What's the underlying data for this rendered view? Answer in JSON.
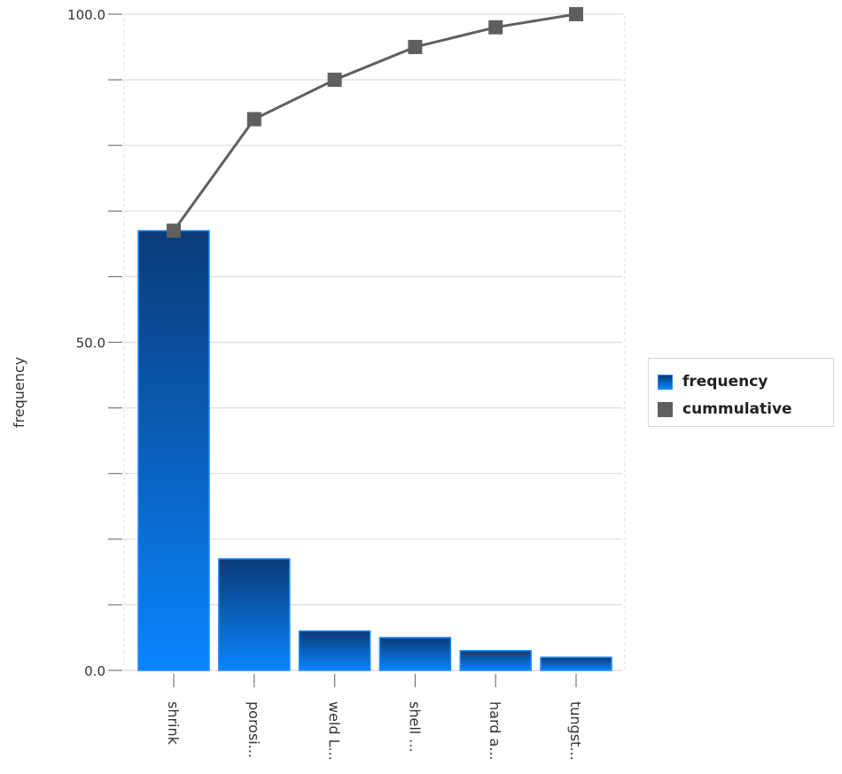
{
  "chart_data": {
    "type": "bar",
    "categories": [
      "shrink",
      "porosi...",
      "weld L...",
      "shell ...",
      "hard a...",
      "tungst..."
    ],
    "series": [
      {
        "name": "frequency",
        "kind": "bar",
        "color": "#0a84ff",
        "values": [
          67,
          17,
          6,
          5,
          3,
          2
        ]
      },
      {
        "name": "cummulative",
        "kind": "line",
        "color": "#5f5f5f",
        "values": [
          67,
          84,
          90,
          95,
          98,
          100
        ]
      }
    ],
    "ylabel": "frequency",
    "ylim": [
      0,
      100
    ],
    "yticks": [
      0,
      10,
      20,
      30,
      40,
      50,
      60,
      70,
      80,
      90,
      100
    ],
    "ytick_labels": {
      "0": "0.0",
      "50": "50.0",
      "100": "100.0"
    },
    "grid": true,
    "legend": "right"
  },
  "colors": {
    "bar_top": "#0a3b78",
    "bar_bottom": "#0a84ff",
    "bar_border": "#1c8bff",
    "line": "#5f5f5f",
    "grid": "#dcdcdc"
  }
}
